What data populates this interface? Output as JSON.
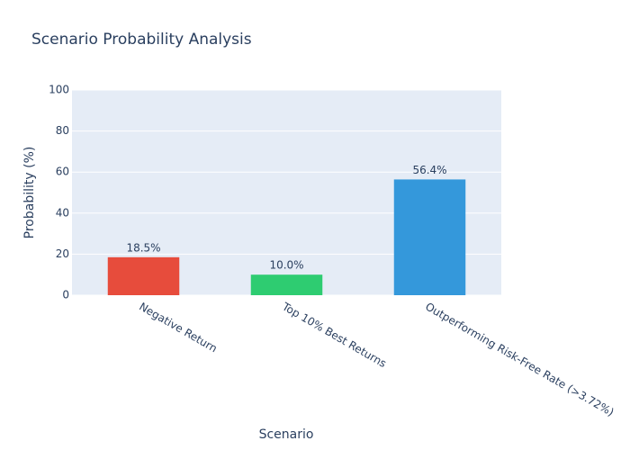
{
  "chart_data": {
    "type": "bar",
    "title": "Scenario Probability Analysis",
    "x_label": "Scenario",
    "y_label": "Probability (%)",
    "categories": [
      "Negative Return",
      "Top 10% Best Returns",
      "Outperforming Risk-Free Rate (>3.72%)"
    ],
    "values": [
      18.5,
      10.0,
      56.4
    ],
    "value_labels": [
      "18.5%",
      "10.0%",
      "56.4%"
    ],
    "colors": [
      "#e74c3c",
      "#2ecc71",
      "#3498db"
    ],
    "ylim": [
      0,
      100
    ],
    "yticks": [
      0,
      20,
      40,
      60,
      80,
      100
    ],
    "grid": true
  }
}
